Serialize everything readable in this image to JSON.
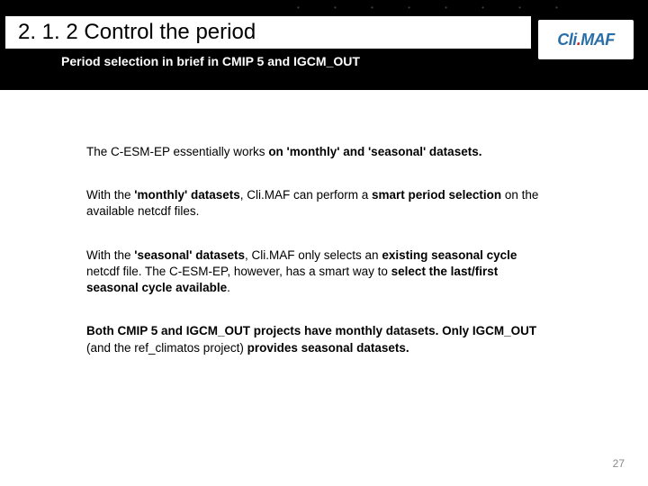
{
  "header": {
    "section_number": "2. 1. 2 Control the period",
    "subtitle": "Period selection in brief in CMIP 5 and IGCM_OUT",
    "logo_text_pre": "Cli",
    "logo_text_dot": ".",
    "logo_text_post": "MAF",
    "dots_decoration": "• • • • • • • •"
  },
  "body": {
    "p1_a": "The C-ESM-EP essentially works ",
    "p1_b": "on 'monthly' and 'seasonal' datasets.",
    "p2_a": "With the ",
    "p2_b": "'monthly' datasets",
    "p2_c": ", Cli.MAF can perform a ",
    "p2_d": "smart period selection",
    "p2_e": " on the available netcdf files.",
    "p3_a": "With the ",
    "p3_b": "'seasonal' datasets",
    "p3_c": ", Cli.MAF only selects an ",
    "p3_d": "existing seasonal cycle",
    "p3_e": " netcdf file. The C-ESM-EP, however, has a smart way to ",
    "p3_f": "select the last/first seasonal cycle available",
    "p3_g": ".",
    "p4_a": "Both CMIP 5 and IGCM_OUT projects have monthly datasets. Only IGCM_OUT ",
    "p4_b": "(and the ref_climatos project) ",
    "p4_c": "provides seasonal datasets."
  },
  "page_number": "27",
  "colors": {
    "bg": "#ffffff",
    "header_bg": "#000000",
    "text": "#000000",
    "page_num": "#8a8a8a",
    "logo_blue": "#2a6ea8",
    "logo_red": "#c62828"
  }
}
